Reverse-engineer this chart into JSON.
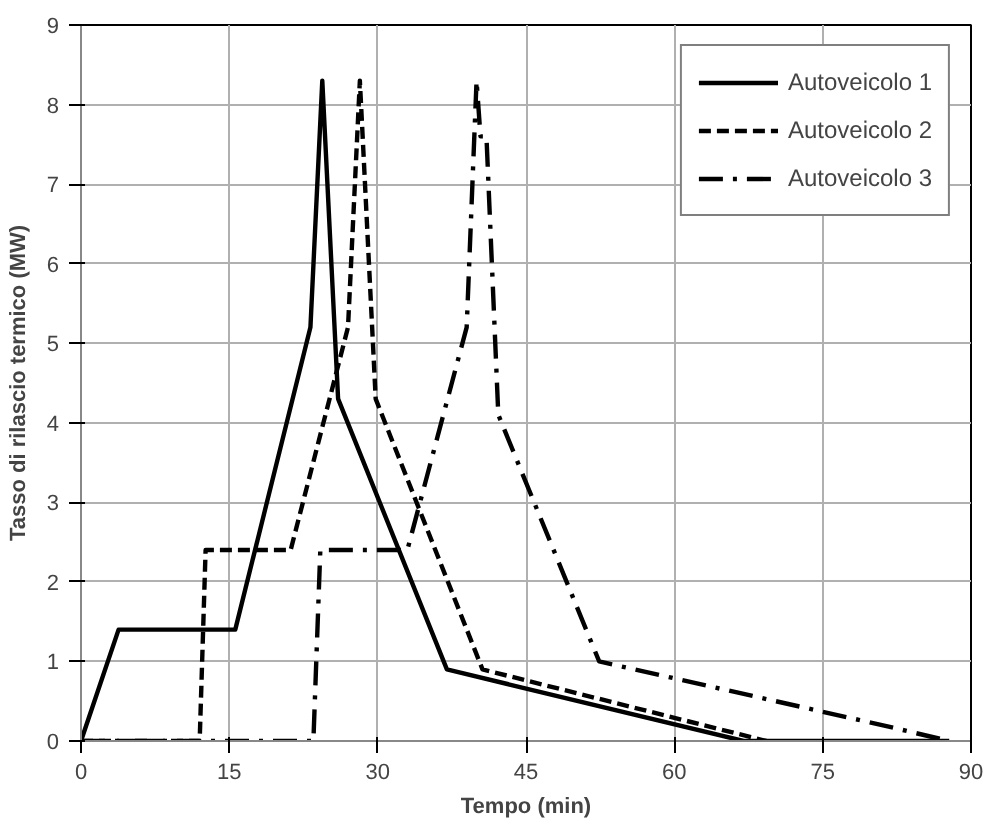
{
  "chart_data": {
    "type": "line",
    "xlabel": "Tempo (min)",
    "ylabel": "Tasso di rilascio termico (MW)",
    "xlim": [
      0,
      90
    ],
    "xticks": [
      0,
      15,
      30,
      45,
      60,
      75,
      90
    ],
    "ylim": [
      0,
      9
    ],
    "yticks": [
      0,
      1,
      2,
      3,
      4,
      5,
      6,
      7,
      8,
      9
    ],
    "grid": true,
    "legend": "top right",
    "marker": "none",
    "series": [
      {
        "name": "Autoveicolo 1",
        "color": "#000000",
        "line_style": "solid",
        "x": [
          0,
          3.8,
          15.6,
          23.2,
          24.4,
          26,
          37,
          67,
          87.8
        ],
        "values": [
          0,
          1.4,
          1.4,
          5.2,
          8.3,
          4.3,
          0.9,
          0,
          0
        ]
      },
      {
        "name": "Autoveicolo 2",
        "color": "#000000",
        "line_style": "dashed",
        "x": [
          0,
          12,
          12.6,
          21.2,
          27,
          28.2,
          29.8,
          40.6,
          69.3
        ],
        "values": [
          0,
          0,
          2.4,
          2.4,
          5.2,
          8.3,
          4.3,
          0.9,
          0
        ]
      },
      {
        "name": "Autoveicolo 3",
        "color": "#000000",
        "line_style": "dashdot",
        "x": [
          0,
          23.5,
          24.2,
          33,
          39,
          40,
          40.4,
          41,
          42.2,
          52.4,
          81,
          87.8
        ],
        "values": [
          0,
          0,
          2.4,
          2.4,
          5.2,
          8.3,
          7.6,
          7.6,
          4.1,
          1.0,
          0.2,
          0
        ]
      }
    ]
  }
}
